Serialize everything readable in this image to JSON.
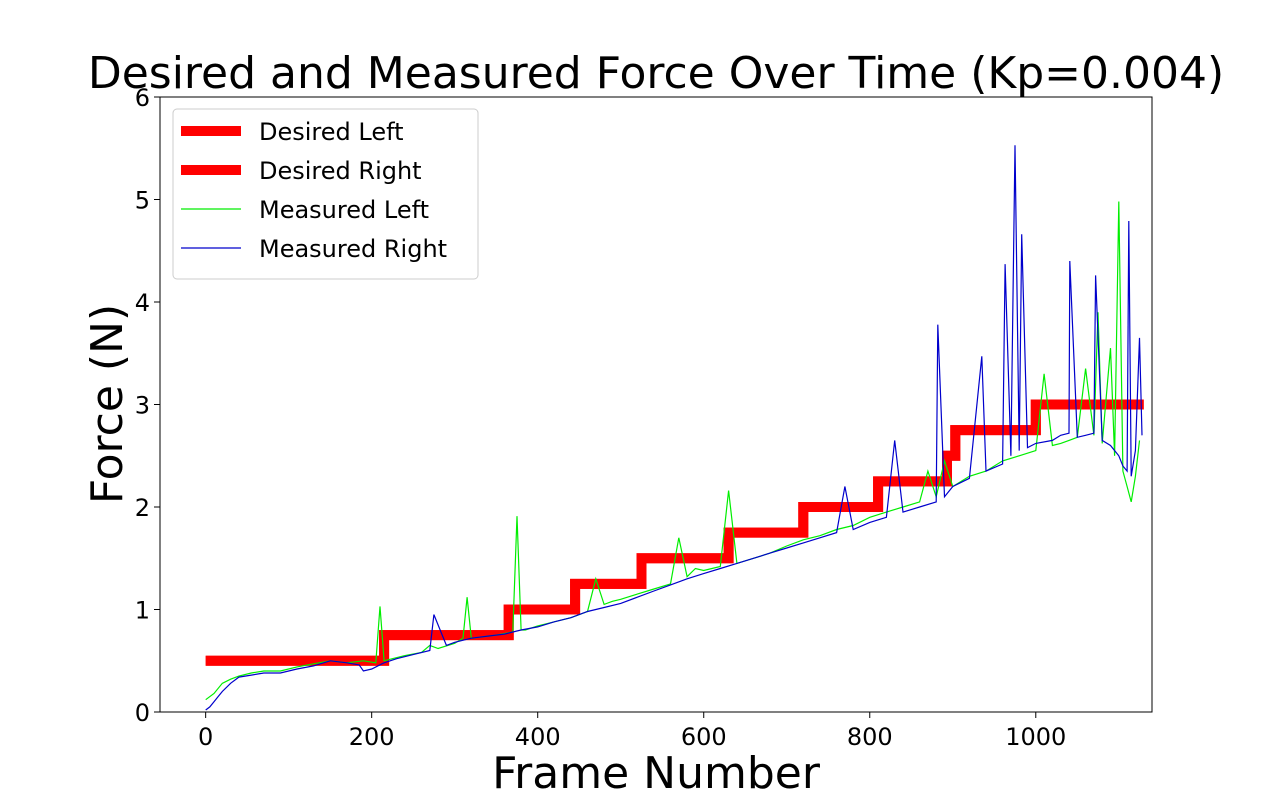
{
  "chart_data": {
    "type": "line",
    "title": "Desired and Measured Force Over Time (Kp=0.004)",
    "xlabel": "Frame Number",
    "ylabel": "Force (N)",
    "xlim": [
      -55,
      1140
    ],
    "ylim": [
      0,
      6
    ],
    "xticks": [
      0,
      200,
      400,
      600,
      800,
      1000
    ],
    "yticks": [
      0,
      1,
      2,
      3,
      4,
      5,
      6
    ],
    "grid": false,
    "legend_position": "top-left",
    "series": [
      {
        "name": "Desired Left",
        "color": "#ff0000",
        "style": "thick",
        "x": [
          0,
          215,
          215,
          365,
          365,
          445,
          445,
          525,
          525,
          630,
          630,
          720,
          720,
          810,
          810,
          893,
          893,
          903,
          903,
          1000,
          1000,
          1130
        ],
        "y": [
          0.5,
          0.5,
          0.75,
          0.75,
          1.0,
          1.0,
          1.25,
          1.25,
          1.5,
          1.5,
          1.75,
          1.75,
          2.0,
          2.0,
          2.25,
          2.25,
          2.5,
          2.5,
          2.75,
          2.75,
          3.0,
          3.0
        ]
      },
      {
        "name": "Desired Right",
        "color": "#ff0000",
        "style": "thick",
        "x": [
          0,
          215,
          215,
          365,
          365,
          445,
          445,
          525,
          525,
          630,
          630,
          720,
          720,
          810,
          810,
          893,
          893,
          903,
          903,
          1000,
          1000,
          1130
        ],
        "y": [
          0.5,
          0.5,
          0.75,
          0.75,
          1.0,
          1.0,
          1.25,
          1.25,
          1.5,
          1.5,
          1.75,
          1.75,
          2.0,
          2.0,
          2.25,
          2.25,
          2.5,
          2.5,
          2.75,
          2.75,
          3.0,
          3.0
        ]
      },
      {
        "name": "Measured Left",
        "color": "#00ee00",
        "style": "thin",
        "x": [
          0,
          10,
          20,
          30,
          40,
          55,
          70,
          90,
          110,
          130,
          150,
          170,
          190,
          205,
          210,
          215,
          225,
          240,
          260,
          270,
          280,
          300,
          310,
          315,
          320,
          330,
          350,
          370,
          375,
          380,
          385,
          400,
          420,
          440,
          460,
          470,
          480,
          490,
          500,
          520,
          540,
          560,
          570,
          580,
          590,
          600,
          620,
          630,
          640,
          660,
          680,
          700,
          720,
          740,
          760,
          780,
          800,
          820,
          840,
          860,
          870,
          880,
          890,
          900,
          920,
          940,
          960,
          980,
          1000,
          1010,
          1020,
          1030,
          1040,
          1050,
          1060,
          1070,
          1075,
          1080,
          1090,
          1095,
          1100,
          1105,
          1110,
          1115,
          1120,
          1125
        ],
        "y": [
          0.12,
          0.18,
          0.28,
          0.32,
          0.35,
          0.38,
          0.4,
          0.4,
          0.44,
          0.47,
          0.5,
          0.48,
          0.5,
          0.48,
          1.03,
          0.5,
          0.52,
          0.55,
          0.58,
          0.65,
          0.62,
          0.67,
          0.72,
          1.12,
          0.72,
          0.73,
          0.75,
          0.78,
          1.91,
          0.8,
          0.8,
          0.84,
          0.88,
          0.92,
          0.98,
          1.3,
          1.05,
          1.08,
          1.1,
          1.15,
          1.2,
          1.25,
          1.7,
          1.32,
          1.4,
          1.38,
          1.42,
          2.16,
          1.45,
          1.5,
          1.55,
          1.62,
          1.68,
          1.72,
          1.78,
          1.82,
          1.9,
          1.95,
          2.0,
          2.05,
          2.35,
          2.1,
          2.45,
          2.2,
          2.3,
          2.35,
          2.45,
          2.5,
          2.55,
          3.3,
          2.6,
          2.62,
          2.65,
          2.68,
          3.35,
          2.7,
          3.9,
          2.62,
          3.55,
          2.5,
          4.98,
          2.35,
          2.2,
          2.05,
          2.3,
          2.65
        ]
      },
      {
        "name": "Measured Right",
        "color": "#0000cc",
        "style": "thin",
        "x": [
          0,
          5,
          10,
          15,
          20,
          30,
          40,
          55,
          70,
          90,
          110,
          130,
          150,
          170,
          185,
          190,
          200,
          215,
          230,
          250,
          270,
          275,
          290,
          300,
          320,
          340,
          360,
          370,
          380,
          400,
          420,
          440,
          460,
          480,
          500,
          520,
          540,
          560,
          580,
          600,
          620,
          640,
          660,
          680,
          700,
          720,
          740,
          760,
          770,
          780,
          800,
          820,
          830,
          840,
          860,
          880,
          882,
          890,
          900,
          920,
          935,
          940,
          960,
          963,
          970,
          975,
          980,
          983,
          990,
          1000,
          1020,
          1030,
          1040,
          1041,
          1050,
          1060,
          1070,
          1072,
          1080,
          1090,
          1100,
          1105,
          1110,
          1112,
          1115,
          1120,
          1125,
          1128
        ],
        "y": [
          0.02,
          0.05,
          0.1,
          0.15,
          0.2,
          0.28,
          0.34,
          0.36,
          0.38,
          0.38,
          0.42,
          0.45,
          0.5,
          0.48,
          0.46,
          0.4,
          0.42,
          0.48,
          0.52,
          0.56,
          0.6,
          0.95,
          0.65,
          0.68,
          0.72,
          0.74,
          0.76,
          0.78,
          0.8,
          0.83,
          0.88,
          0.92,
          0.98,
          1.02,
          1.06,
          1.12,
          1.18,
          1.24,
          1.3,
          1.35,
          1.4,
          1.45,
          1.5,
          1.55,
          1.6,
          1.65,
          1.7,
          1.75,
          2.2,
          1.78,
          1.85,
          1.9,
          2.65,
          1.95,
          2.0,
          2.05,
          3.78,
          2.1,
          2.2,
          2.28,
          3.47,
          2.35,
          2.42,
          4.37,
          2.5,
          5.53,
          2.55,
          4.66,
          2.58,
          2.62,
          2.65,
          2.7,
          2.72,
          4.4,
          2.68,
          2.7,
          2.72,
          4.26,
          2.65,
          2.6,
          2.5,
          2.4,
          2.35,
          4.79,
          2.3,
          2.55,
          3.65,
          2.7
        ]
      }
    ]
  }
}
